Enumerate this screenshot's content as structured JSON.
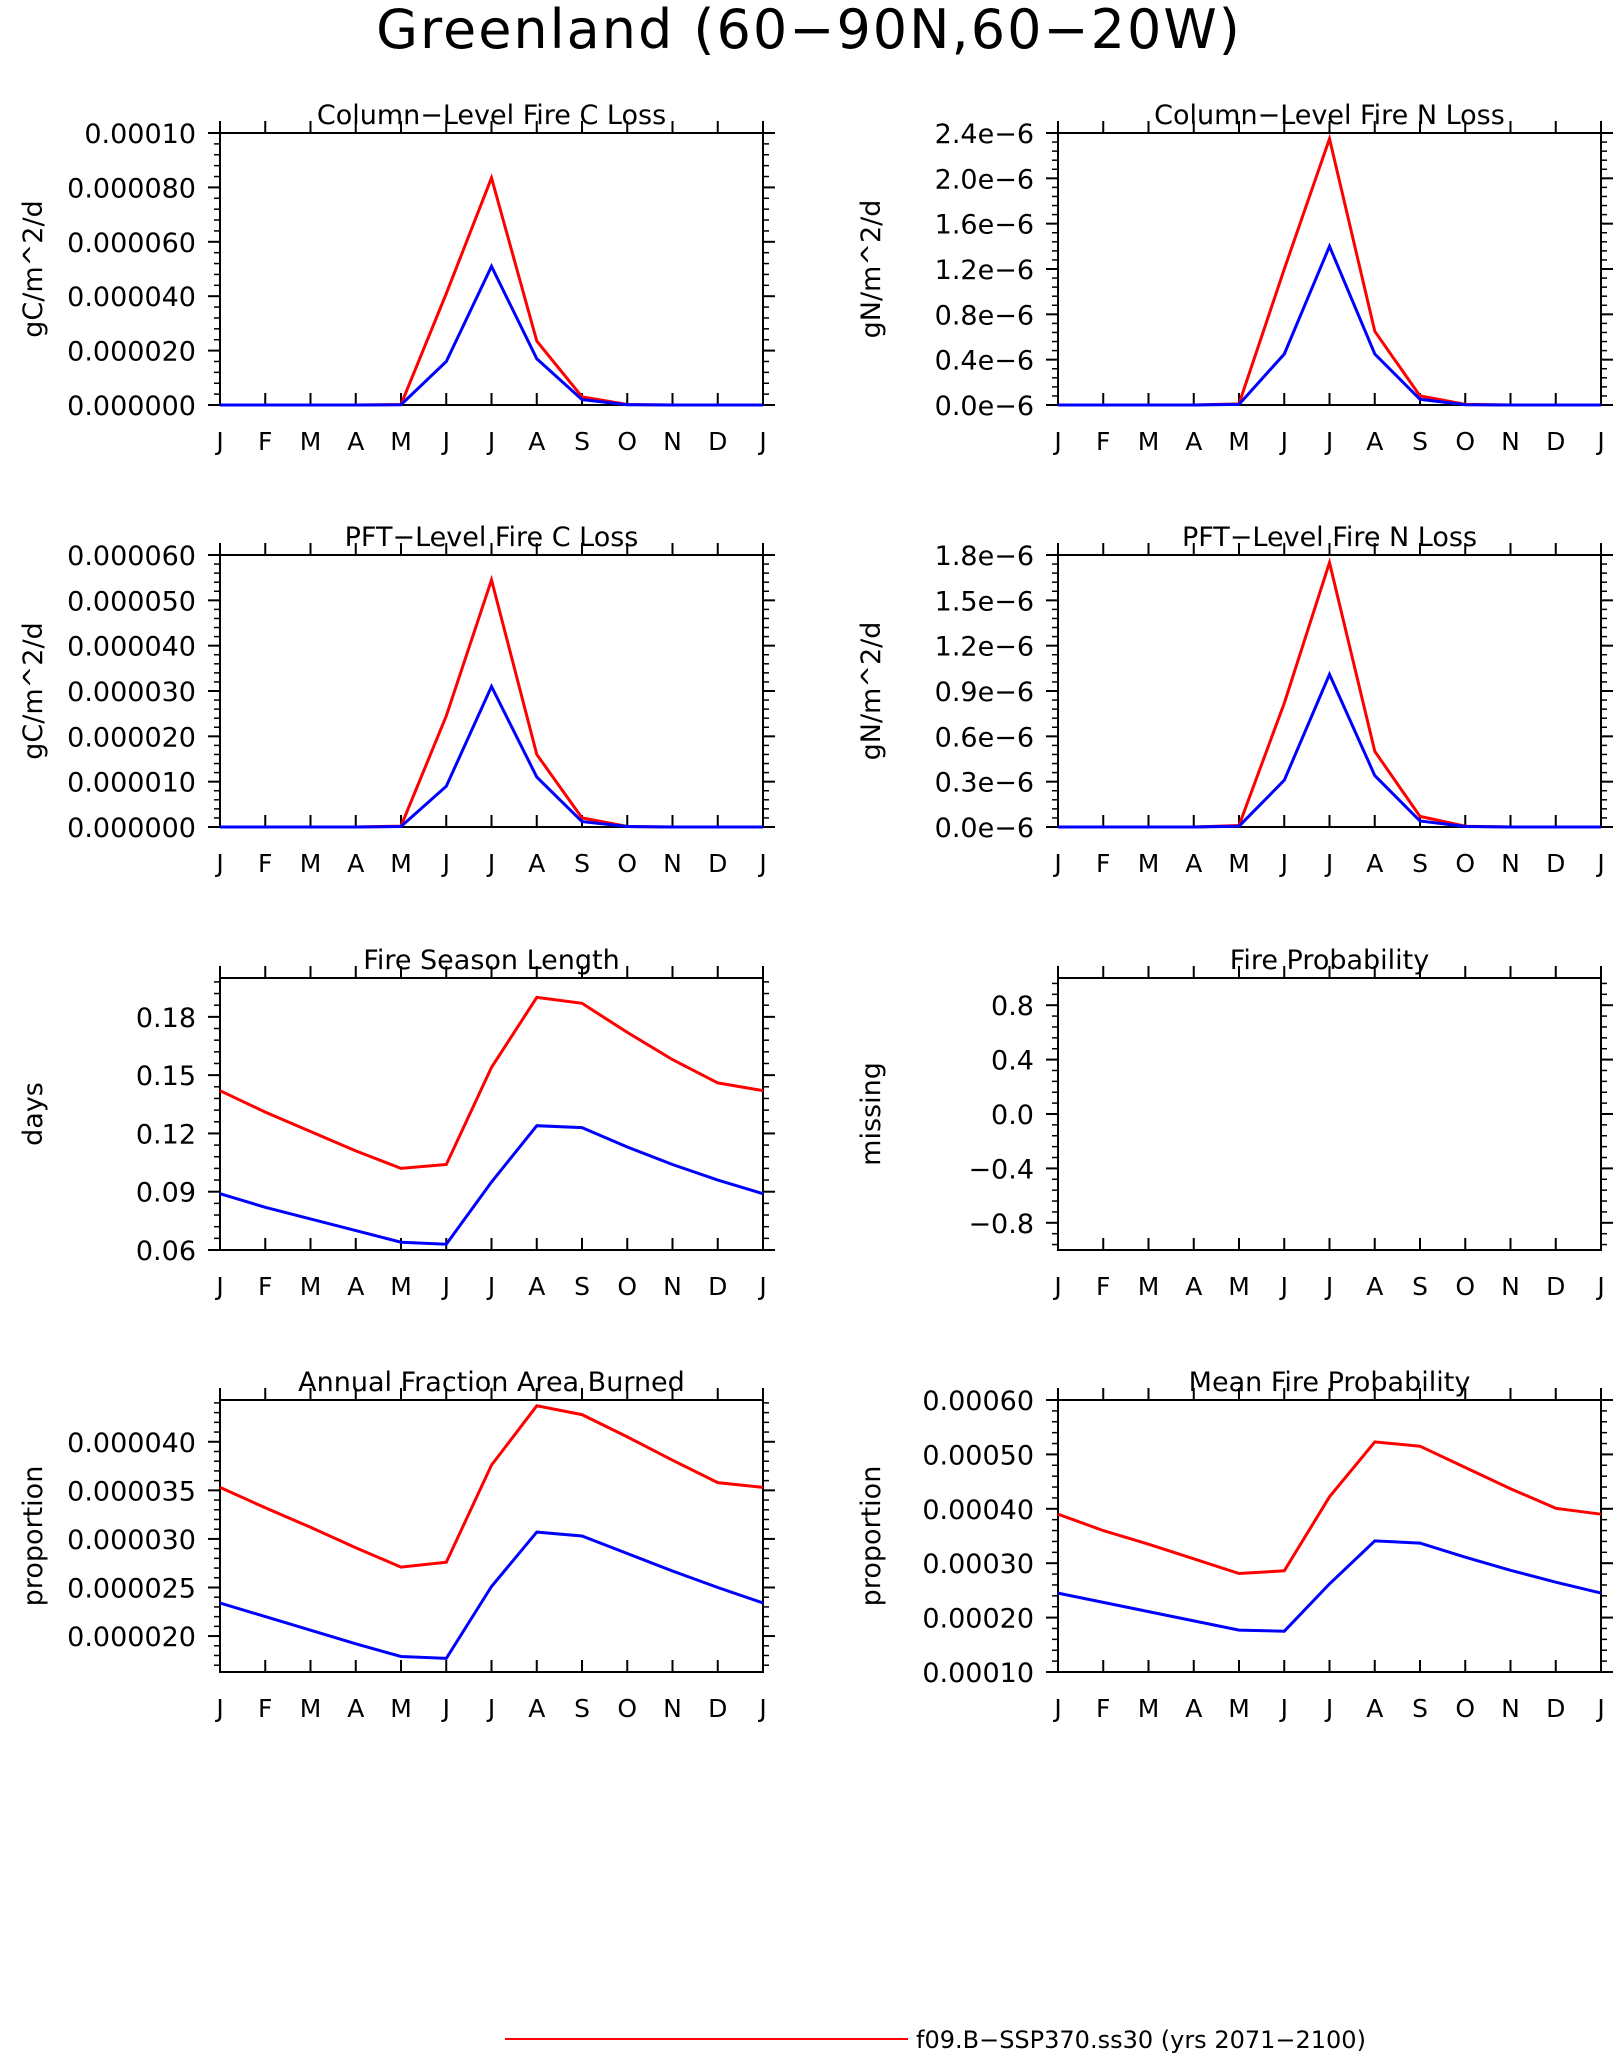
{
  "page_title": "Greenland (60−90N,60−20W)",
  "legend": [
    {
      "label": "f09.B−SSP370.ss30 (yrs 2071−2100)",
      "color": "#ff0000"
    }
  ],
  "month_ticks": [
    "J",
    "F",
    "M",
    "A",
    "M",
    "J",
    "J",
    "A",
    "S",
    "O",
    "N",
    "D",
    "J"
  ],
  "chart_data": [
    {
      "type": "line",
      "title": "Column−Level Fire C Loss",
      "ylabel": "gC/m^2/d",
      "xlabel": "",
      "ylim": [
        0,
        0.0001
      ],
      "yticks": [
        0,
        2e-05,
        4e-05,
        6e-05,
        8e-05,
        0.0001
      ],
      "ytick_labels": [
        "0.000000",
        "0.000020",
        "0.000040",
        "0.000060",
        "0.000080",
        "0.00010"
      ],
      "x": [
        1,
        2,
        3,
        4,
        5,
        6,
        7,
        8,
        9,
        10,
        11,
        12,
        13
      ],
      "series": [
        {
          "color": "#ff0000",
          "values": [
            0,
            0,
            0,
            0,
            2e-07,
            4.1e-05,
            8.35e-05,
            2.35e-05,
            3e-06,
            2e-07,
            0,
            0,
            0
          ]
        },
        {
          "color": "#0000ff",
          "values": [
            0,
            0,
            0,
            0,
            1e-07,
            1.6e-05,
            5.1e-05,
            1.7e-05,
            2e-06,
            1e-07,
            0,
            0,
            0
          ]
        }
      ]
    },
    {
      "type": "line",
      "title": "Column−Level Fire N Loss",
      "ylabel": "gN/m^2/d",
      "xlabel": "",
      "ylim": [
        0,
        2.4e-06
      ],
      "yticks": [
        0,
        4e-07,
        8e-07,
        1.2e-06,
        1.6e-06,
        2e-06,
        2.4e-06
      ],
      "ytick_labels": [
        "0.0e−6",
        "0.4e−6",
        "0.8e−6",
        "1.2e−6",
        "1.6e−6",
        "2.0e−6",
        "2.4e−6"
      ],
      "x": [
        1,
        2,
        3,
        4,
        5,
        6,
        7,
        8,
        9,
        10,
        11,
        12,
        13
      ],
      "series": [
        {
          "color": "#ff0000",
          "values": [
            0,
            0,
            0,
            0,
            1e-08,
            1.2e-06,
            2.35e-06,
            6.5e-07,
            8e-08,
            5e-09,
            0,
            0,
            0
          ]
        },
        {
          "color": "#0000ff",
          "values": [
            0,
            0,
            0,
            0,
            5e-09,
            4.5e-07,
            1.4e-06,
            4.5e-07,
            5e-08,
            3e-09,
            0,
            0,
            0
          ]
        }
      ]
    },
    {
      "type": "line",
      "title": "PFT−Level Fire C Loss",
      "ylabel": "gC/m^2/d",
      "xlabel": "",
      "ylim": [
        0,
        6e-05
      ],
      "yticks": [
        0,
        1e-05,
        2e-05,
        3e-05,
        4e-05,
        5e-05,
        6e-05
      ],
      "ytick_labels": [
        "0.000000",
        "0.000010",
        "0.000020",
        "0.000030",
        "0.000040",
        "0.000050",
        "0.000060"
      ],
      "x": [
        1,
        2,
        3,
        4,
        5,
        6,
        7,
        8,
        9,
        10,
        11,
        12,
        13
      ],
      "series": [
        {
          "color": "#ff0000",
          "values": [
            0,
            0,
            0,
            0,
            2e-07,
            2.45e-05,
            5.45e-05,
            1.6e-05,
            2e-06,
            1e-07,
            0,
            0,
            0
          ]
        },
        {
          "color": "#0000ff",
          "values": [
            0,
            0,
            0,
            0,
            1e-07,
            9e-06,
            3.1e-05,
            1.1e-05,
            1.2e-06,
            1e-07,
            0,
            0,
            0
          ]
        }
      ]
    },
    {
      "type": "line",
      "title": "PFT−Level Fire N Loss",
      "ylabel": "gN/m^2/d",
      "xlabel": "",
      "ylim": [
        0,
        1.8e-06
      ],
      "yticks": [
        0,
        3e-07,
        6e-07,
        9e-07,
        1.2e-06,
        1.5e-06,
        1.8e-06
      ],
      "ytick_labels": [
        "0.0e−6",
        "0.3e−6",
        "0.6e−6",
        "0.9e−6",
        "1.2e−6",
        "1.5e−6",
        "1.8e−6"
      ],
      "x": [
        1,
        2,
        3,
        4,
        5,
        6,
        7,
        8,
        9,
        10,
        11,
        12,
        13
      ],
      "series": [
        {
          "color": "#ff0000",
          "values": [
            0,
            0,
            0,
            0,
            1e-08,
            8.2e-07,
            1.75e-06,
            5e-07,
            7e-08,
            5e-09,
            0,
            0,
            0
          ]
        },
        {
          "color": "#0000ff",
          "values": [
            0,
            0,
            0,
            0,
            5e-09,
            3.1e-07,
            1.01e-06,
            3.4e-07,
            4e-08,
            3e-09,
            0,
            0,
            0
          ]
        }
      ]
    },
    {
      "type": "line",
      "title": "Fire Season Length",
      "ylabel": "days",
      "xlabel": "",
      "ylim": [
        0.06,
        0.2
      ],
      "yticks": [
        0.06,
        0.09,
        0.12,
        0.15,
        0.18
      ],
      "ytick_labels": [
        "0.06",
        "0.09",
        "0.12",
        "0.15",
        "0.18"
      ],
      "x": [
        1,
        2,
        3,
        4,
        5,
        6,
        7,
        8,
        9,
        10,
        11,
        12,
        13
      ],
      "series": [
        {
          "color": "#ff0000",
          "values": [
            0.142,
            0.131,
            0.121,
            0.111,
            0.102,
            0.104,
            0.154,
            0.19,
            0.187,
            0.172,
            0.158,
            0.146,
            0.142
          ]
        },
        {
          "color": "#0000ff",
          "values": [
            0.089,
            0.082,
            0.076,
            0.07,
            0.064,
            0.063,
            0.095,
            0.124,
            0.123,
            0.113,
            0.104,
            0.096,
            0.089
          ]
        }
      ]
    },
    {
      "type": "line",
      "title": "Fire Probability",
      "ylabel": "missing",
      "xlabel": "",
      "ylim": [
        -1,
        1
      ],
      "yticks": [
        -0.8,
        -0.4,
        0,
        0.4,
        0.8
      ],
      "ytick_labels": [
        "−0.8",
        "−0.4",
        "0.0",
        "0.4",
        "0.8"
      ],
      "x": [
        1,
        2,
        3,
        4,
        5,
        6,
        7,
        8,
        9,
        10,
        11,
        12,
        13
      ],
      "series": []
    },
    {
      "type": "line",
      "title": "Annual Fraction Area Burned",
      "ylabel": "proportion",
      "xlabel": "",
      "ylim": [
        1.63e-05,
        4.43e-05
      ],
      "yticks": [
        2e-05,
        2.5e-05,
        3e-05,
        3.5e-05,
        4e-05
      ],
      "ytick_labels": [
        "0.000020",
        "0.000025",
        "0.000030",
        "0.000035",
        "0.000040"
      ],
      "x": [
        1,
        2,
        3,
        4,
        5,
        6,
        7,
        8,
        9,
        10,
        11,
        12,
        13
      ],
      "series": [
        {
          "color": "#ff0000",
          "values": [
            3.53e-05,
            3.32e-05,
            3.12e-05,
            2.91e-05,
            2.71e-05,
            2.76e-05,
            3.76e-05,
            4.37e-05,
            4.28e-05,
            4.05e-05,
            3.81e-05,
            3.58e-05,
            3.53e-05
          ]
        },
        {
          "color": "#0000ff",
          "values": [
            2.34e-05,
            2.2e-05,
            2.06e-05,
            1.92e-05,
            1.79e-05,
            1.77e-05,
            2.51e-05,
            3.07e-05,
            3.03e-05,
            2.85e-05,
            2.67e-05,
            2.5e-05,
            2.34e-05
          ]
        }
      ]
    },
    {
      "type": "line",
      "title": "Mean Fire Probability",
      "ylabel": "proportion",
      "xlabel": "",
      "ylim": [
        0.0001,
        0.0006
      ],
      "yticks": [
        0.0001,
        0.0002,
        0.0003,
        0.0004,
        0.0005,
        0.0006
      ],
      "ytick_labels": [
        "0.00010",
        "0.00020",
        "0.00030",
        "0.00040",
        "0.00050",
        "0.00060"
      ],
      "x": [
        1,
        2,
        3,
        4,
        5,
        6,
        7,
        8,
        9,
        10,
        11,
        12,
        13
      ],
      "series": [
        {
          "color": "#ff0000",
          "values": [
            0.00039,
            0.00036,
            0.000335,
            0.000308,
            0.000281,
            0.000286,
            0.000422,
            0.000523,
            0.000515,
            0.000476,
            0.000437,
            0.000401,
            0.00039
          ]
        },
        {
          "color": "#0000ff",
          "values": [
            0.000245,
            0.000228,
            0.000211,
            0.000194,
            0.000177,
            0.000175,
            0.000262,
            0.000341,
            0.000337,
            0.000311,
            0.000287,
            0.000265,
            0.000245
          ]
        }
      ]
    }
  ]
}
